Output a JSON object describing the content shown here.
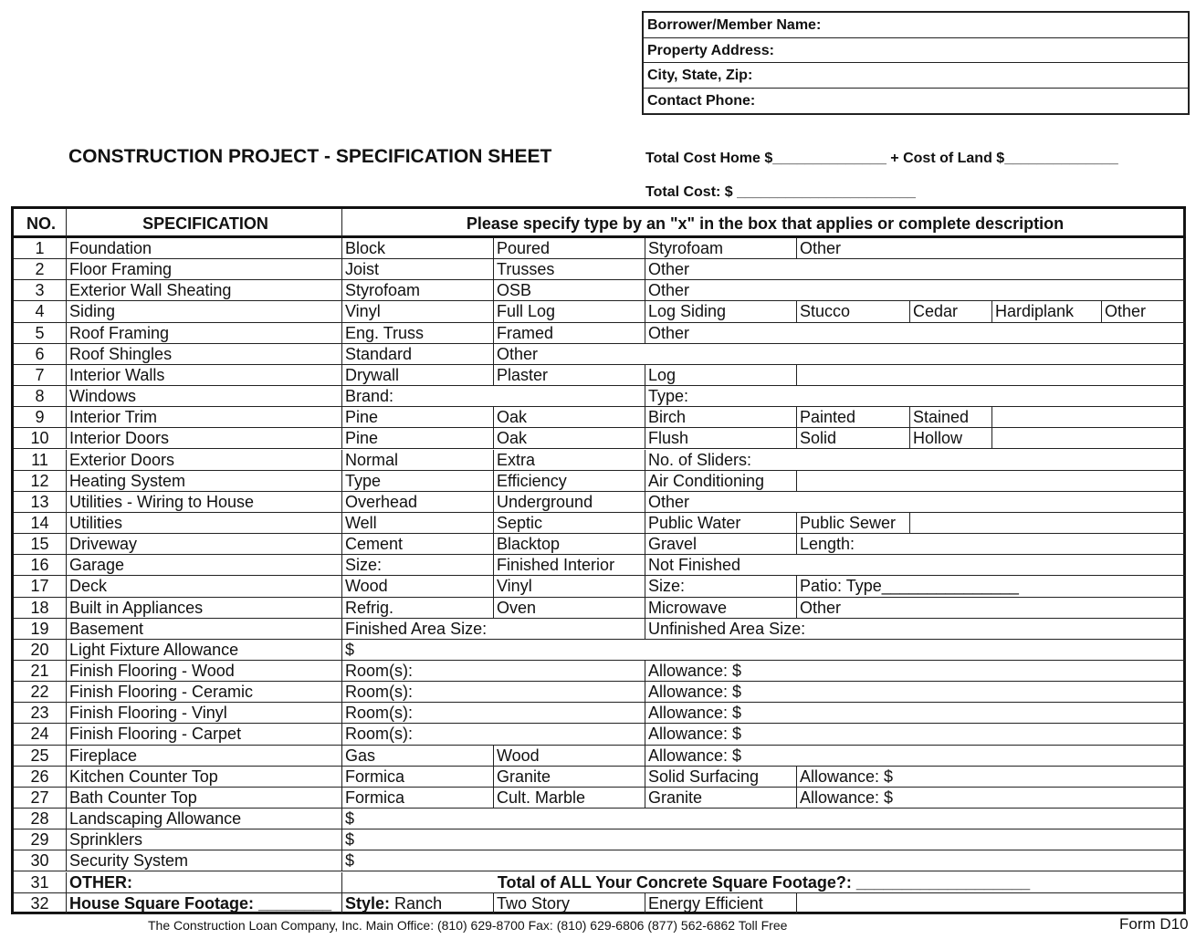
{
  "info_box": [
    "Borrower/Member Name:",
    "Property Address:",
    "City, State, Zip:",
    "Contact Phone:"
  ],
  "title": "CONSTRUCTION PROJECT - SPECIFICATION SHEET",
  "cost_line1": "Total Cost Home $______________ + Cost of Land $______________",
  "cost_line2": "Total Cost: $ ______________________",
  "headers": {
    "no": "NO.",
    "spec": "SPECIFICATION",
    "instructions": "Please specify type by an \"x\" in the box that applies or complete description"
  },
  "rows": [
    {
      "no": "1",
      "spec": "Foundation",
      "cells": [
        {
          "t": "Block",
          "s": 1
        },
        {
          "t": "Poured",
          "s": 1
        },
        {
          "t": "Styrofoam",
          "s": 1
        },
        {
          "t": "Other",
          "s": 4
        }
      ]
    },
    {
      "no": "2",
      "spec": "Floor Framing",
      "cells": [
        {
          "t": "Joist",
          "s": 1
        },
        {
          "t": "Trusses",
          "s": 1
        },
        {
          "t": "Other",
          "s": 5
        }
      ]
    },
    {
      "no": "3",
      "spec": "Exterior Wall Sheating",
      "cells": [
        {
          "t": "Styrofoam",
          "s": 1
        },
        {
          "t": "OSB",
          "s": 1
        },
        {
          "t": "Other",
          "s": 5
        }
      ]
    },
    {
      "no": "4",
      "spec": "Siding",
      "cells": [
        {
          "t": "Vinyl",
          "s": 1
        },
        {
          "t": "Full Log",
          "s": 1
        },
        {
          "t": "Log Siding",
          "s": 1
        },
        {
          "t": "Stucco",
          "s": 1
        },
        {
          "t": "Cedar",
          "s": 1
        },
        {
          "t": "Hardiplank",
          "s": 1
        },
        {
          "t": "Other",
          "s": 1
        }
      ]
    },
    {
      "no": "5",
      "spec": "Roof Framing",
      "cells": [
        {
          "t": "Eng. Truss",
          "s": 1
        },
        {
          "t": "Framed",
          "s": 1
        },
        {
          "t": "Other",
          "s": 5
        }
      ]
    },
    {
      "no": "6",
      "spec": "Roof Shingles",
      "cells": [
        {
          "t": "Standard",
          "s": 1
        },
        {
          "t": "Other",
          "s": 6
        }
      ]
    },
    {
      "no": "7",
      "spec": "Interior Walls",
      "cells": [
        {
          "t": "Drywall",
          "s": 1
        },
        {
          "t": "Plaster",
          "s": 1
        },
        {
          "t": "Log",
          "s": 1
        },
        {
          "t": "",
          "s": 4
        }
      ]
    },
    {
      "no": "8",
      "spec": "Windows",
      "cells": [
        {
          "t": "Brand:",
          "s": 2
        },
        {
          "t": "Type:",
          "s": 5
        }
      ]
    },
    {
      "no": "9",
      "spec": "Interior Trim",
      "cells": [
        {
          "t": "Pine",
          "s": 1
        },
        {
          "t": "Oak",
          "s": 1
        },
        {
          "t": "Birch",
          "s": 1
        },
        {
          "t": "Painted",
          "s": 1
        },
        {
          "t": "Stained",
          "s": 1
        },
        {
          "t": "",
          "s": 2
        }
      ]
    },
    {
      "no": "10",
      "spec": "Interior Doors",
      "cells": [
        {
          "t": "Pine",
          "s": 1
        },
        {
          "t": "Oak",
          "s": 1
        },
        {
          "t": "Flush",
          "s": 1
        },
        {
          "t": "Solid",
          "s": 1
        },
        {
          "t": "Hollow",
          "s": 1
        },
        {
          "t": "",
          "s": 2
        }
      ]
    },
    {
      "no": "11",
      "spec": "Exterior Doors",
      "cells": [
        {
          "t": "Normal",
          "s": 1
        },
        {
          "t": "Extra",
          "s": 1
        },
        {
          "t": "No. of Sliders:",
          "s": 5
        }
      ]
    },
    {
      "no": "12",
      "spec": "Heating System",
      "cells": [
        {
          "t": "Type",
          "s": 1
        },
        {
          "t": "Efficiency",
          "s": 1
        },
        {
          "t": "Air Conditioning",
          "s": 1
        },
        {
          "t": "",
          "s": 4
        }
      ]
    },
    {
      "no": "13",
      "spec": "Utilities - Wiring to House",
      "cells": [
        {
          "t": "Overhead",
          "s": 1
        },
        {
          "t": "Underground",
          "s": 1
        },
        {
          "t": "Other",
          "s": 5
        }
      ]
    },
    {
      "no": "14",
      "spec": "Utilities",
      "cells": [
        {
          "t": "Well",
          "s": 1
        },
        {
          "t": "Septic",
          "s": 1
        },
        {
          "t": "Public Water",
          "s": 1
        },
        {
          "t": "Public Sewer",
          "s": 1
        },
        {
          "t": "",
          "s": 3
        }
      ]
    },
    {
      "no": "15",
      "spec": "Driveway",
      "cells": [
        {
          "t": "Cement",
          "s": 1
        },
        {
          "t": "Blacktop",
          "s": 1
        },
        {
          "t": "Gravel",
          "s": 1
        },
        {
          "t": "Length:",
          "s": 4
        }
      ]
    },
    {
      "no": "16",
      "spec": "Garage",
      "cells": [
        {
          "t": "Size:",
          "s": 1
        },
        {
          "t": "Finished Interior",
          "s": 1
        },
        {
          "t": "Not Finished",
          "s": 5
        }
      ]
    },
    {
      "no": "17",
      "spec": "Deck",
      "cells": [
        {
          "t": "Wood",
          "s": 1
        },
        {
          "t": "Vinyl",
          "s": 1
        },
        {
          "t": "Size:",
          "s": 1
        },
        {
          "t": "Patio: Type_______________",
          "s": 4
        }
      ]
    },
    {
      "no": "18",
      "spec": "Built in Appliances",
      "cells": [
        {
          "t": "Refrig.",
          "s": 1
        },
        {
          "t": "Oven",
          "s": 1
        },
        {
          "t": "Microwave",
          "s": 1
        },
        {
          "t": "Other",
          "s": 4
        }
      ]
    },
    {
      "no": "19",
      "spec": "Basement",
      "cells": [
        {
          "t": "Finished Area Size:",
          "s": 2
        },
        {
          "t": "Unfinished Area Size:",
          "s": 5
        }
      ]
    },
    {
      "no": "20",
      "spec": "Light Fixture Allowance",
      "cells": [
        {
          "t": "$",
          "s": 7
        }
      ]
    },
    {
      "no": "21",
      "spec": "Finish Flooring - Wood",
      "cells": [
        {
          "t": "Room(s):",
          "s": 2
        },
        {
          "t": "Allowance: $",
          "s": 5
        }
      ]
    },
    {
      "no": "22",
      "spec": "Finish Flooring - Ceramic",
      "cells": [
        {
          "t": "Room(s):",
          "s": 2
        },
        {
          "t": "Allowance: $",
          "s": 5
        }
      ]
    },
    {
      "no": "23",
      "spec": "Finish Flooring - Vinyl",
      "cells": [
        {
          "t": "Room(s):",
          "s": 2
        },
        {
          "t": "Allowance: $",
          "s": 5
        }
      ]
    },
    {
      "no": "24",
      "spec": "Finish Flooring - Carpet",
      "cells": [
        {
          "t": "Room(s):",
          "s": 2
        },
        {
          "t": "Allowance: $",
          "s": 5
        }
      ]
    },
    {
      "no": "25",
      "spec": "Fireplace",
      "cells": [
        {
          "t": "Gas",
          "s": 1
        },
        {
          "t": "Wood",
          "s": 1
        },
        {
          "t": "Allowance: $",
          "s": 5
        }
      ]
    },
    {
      "no": "26",
      "spec": "Kitchen Counter Top",
      "cells": [
        {
          "t": "Formica",
          "s": 1
        },
        {
          "t": "Granite",
          "s": 1
        },
        {
          "t": "Solid Surfacing",
          "s": 1
        },
        {
          "t": "Allowance: $",
          "s": 4
        }
      ]
    },
    {
      "no": "27",
      "spec": "Bath Counter Top",
      "cells": [
        {
          "t": "Formica",
          "s": 1
        },
        {
          "t": "Cult. Marble",
          "s": 1
        },
        {
          "t": "Granite",
          "s": 1
        },
        {
          "t": "Allowance: $",
          "s": 4
        }
      ]
    },
    {
      "no": "28",
      "spec": "Landscaping Allowance",
      "cells": [
        {
          "t": "$",
          "s": 7
        }
      ]
    },
    {
      "no": "29",
      "spec": "Sprinklers",
      "cells": [
        {
          "t": "$",
          "s": 7
        }
      ]
    },
    {
      "no": "30",
      "spec": "Security System",
      "cells": [
        {
          "t": "$",
          "s": 7
        }
      ]
    },
    {
      "no": "31",
      "spec": "OTHER:",
      "spec_bold": true,
      "cells": [
        {
          "t": "Total of ALL Your Concrete Square Footage?:  ___________________",
          "s": 7,
          "bold": true,
          "center": true
        }
      ]
    },
    {
      "no": "32",
      "spec": "House Square Footage: ________",
      "spec_bold": true,
      "cells": [
        {
          "label": "Style:",
          "t": "Ranch",
          "s": 1
        },
        {
          "t": "Two Story",
          "s": 1
        },
        {
          "t": "Energy Efficient",
          "s": 1
        },
        {
          "t": "",
          "s": 4
        }
      ]
    }
  ],
  "footer": "The Construction Loan Company, Inc.  Main Office:  (810) 629-8700   Fax: (810) 629-6806  (877) 562-6862 Toll Free",
  "form_id": "Form D10"
}
